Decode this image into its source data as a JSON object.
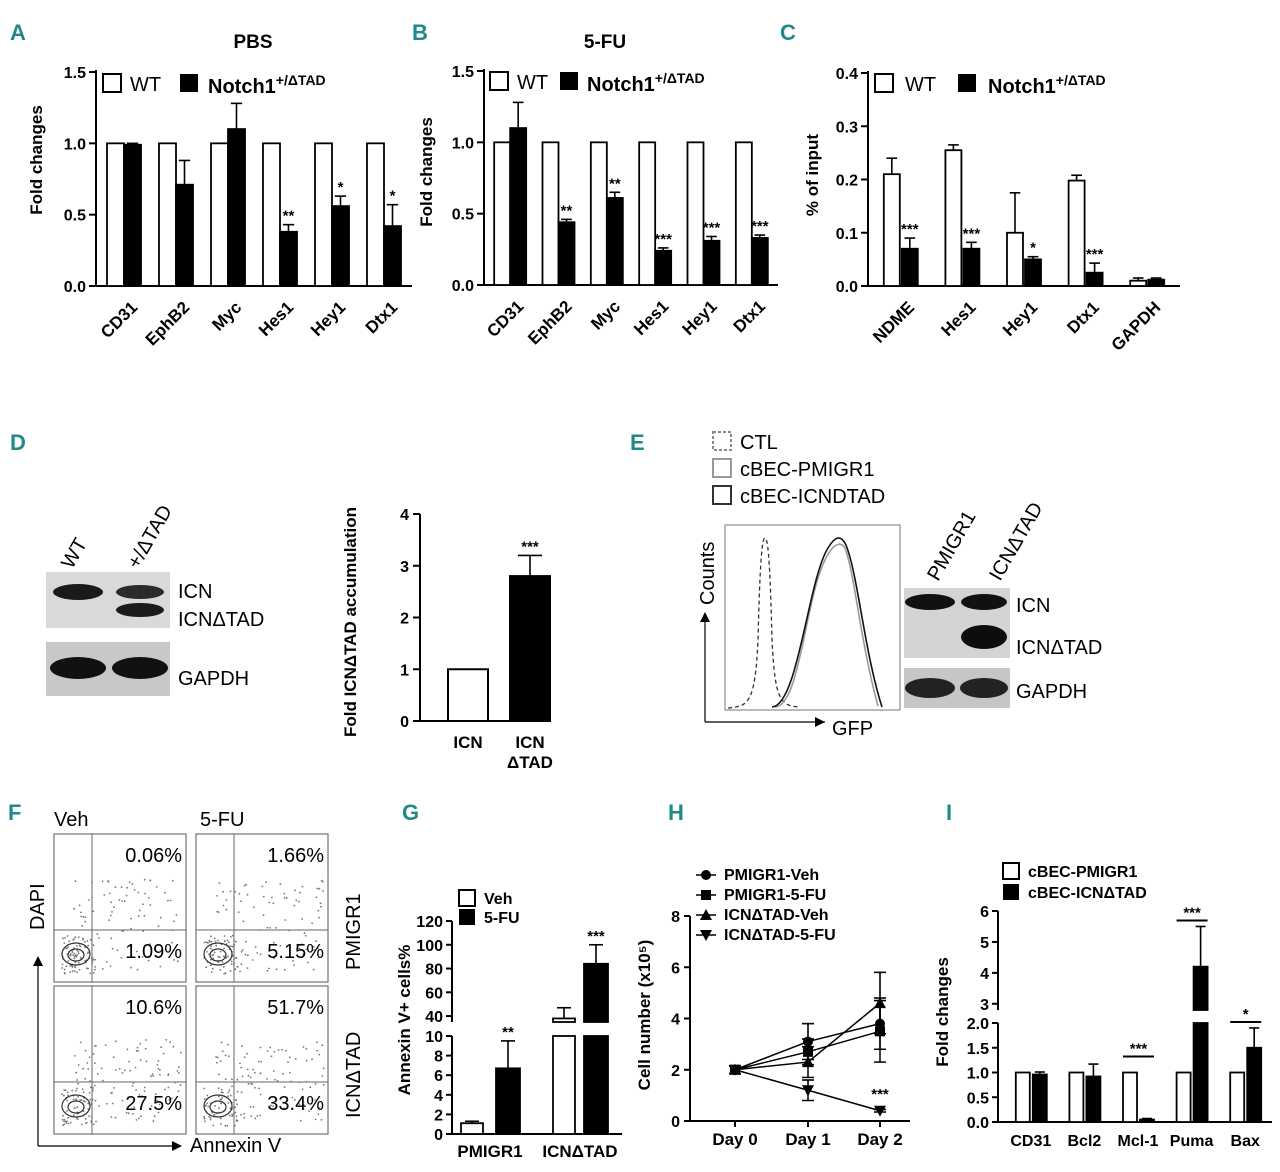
{
  "panel_labels": [
    "A",
    "B",
    "C",
    "D",
    "E",
    "F",
    "G",
    "H",
    "I"
  ],
  "colors": {
    "label": "#1f8a8a",
    "fill": "#000000",
    "open": "#ffffff"
  },
  "chart_data": [
    {
      "id": "A",
      "type": "bar",
      "title": "PBS",
      "ylabel": "Fold changes",
      "ylim": [
        0,
        1.5
      ],
      "yticks": [
        "0.0",
        "0.5",
        "1.0",
        "1.5"
      ],
      "categories": [
        "CD31",
        "EphB2",
        "Myc",
        "Hes1",
        "Hey1",
        "Dtx1"
      ],
      "legend": [
        "WT",
        "Notch1",
        "+/ΔTAD"
      ],
      "series": [
        {
          "name": "WT",
          "values": [
            1,
            1,
            1,
            1,
            1,
            1
          ],
          "errors": [
            0,
            0,
            0,
            0,
            0,
            0
          ]
        },
        {
          "name": "Notch1+/ΔTAD",
          "values": [
            0.99,
            0.71,
            1.1,
            0.38,
            0.56,
            0.42
          ],
          "errors": [
            0.01,
            0.17,
            0.18,
            0.05,
            0.07,
            0.15
          ]
        }
      ],
      "significance": [
        "",
        "",
        "",
        "**",
        "*",
        "*"
      ]
    },
    {
      "id": "B",
      "type": "bar",
      "title": "5-FU",
      "ylabel": "Fold changes",
      "ylim": [
        0,
        1.5
      ],
      "yticks": [
        "0.0",
        "0.5",
        "1.0",
        "1.5"
      ],
      "categories": [
        "CD31",
        "EphB2",
        "Myc",
        "Hes1",
        "Hey1",
        "Dtx1"
      ],
      "legend": [
        "WT",
        "Notch1",
        "+/ΔTAD"
      ],
      "series": [
        {
          "name": "WT",
          "values": [
            1,
            1,
            1,
            1,
            1,
            1
          ],
          "errors": [
            0,
            0,
            0,
            0,
            0,
            0
          ]
        },
        {
          "name": "Notch1+/ΔTAD",
          "values": [
            1.1,
            0.44,
            0.61,
            0.24,
            0.31,
            0.33
          ],
          "errors": [
            0.18,
            0.02,
            0.04,
            0.02,
            0.03,
            0.02
          ]
        }
      ],
      "significance": [
        "",
        "**",
        "**",
        "***",
        "***",
        "***"
      ]
    },
    {
      "id": "C",
      "type": "bar",
      "title": "",
      "ylabel": "% of input",
      "ylim": [
        0,
        0.4
      ],
      "yticks": [
        "0.0",
        "0.1",
        "0.2",
        "0.3",
        "0.4"
      ],
      "categories": [
        "NDME",
        "Hes1",
        "Hey1",
        "Dtx1",
        "GAPDH"
      ],
      "legend": [
        "WT",
        "Notch1",
        "+/ΔTAD"
      ],
      "series": [
        {
          "name": "WT",
          "values": [
            0.21,
            0.255,
            0.1,
            0.198,
            0.01
          ],
          "errors": [
            0.03,
            0.01,
            0.075,
            0.01,
            0.005
          ]
        },
        {
          "name": "Notch1+/ΔTAD",
          "values": [
            0.07,
            0.07,
            0.05,
            0.025,
            0.012
          ],
          "errors": [
            0.02,
            0.012,
            0.005,
            0.018,
            0.003
          ]
        }
      ],
      "significance": [
        "***",
        "***",
        "*",
        "***",
        ""
      ]
    },
    {
      "id": "D",
      "type": "bar",
      "ylabel": "Fold ICNΔTAD accumulation",
      "ylim": [
        0,
        4
      ],
      "yticks": [
        "0",
        "1",
        "2",
        "3",
        "4"
      ],
      "categories": [
        "ICN",
        "ICN ΔTAD"
      ],
      "category_lines": [
        [
          "ICN"
        ],
        [
          "ICN",
          "ΔTAD"
        ]
      ],
      "values": [
        1,
        2.8
      ],
      "errors": [
        0,
        0.4
      ],
      "fills": [
        "open",
        "fill"
      ],
      "significance": [
        "",
        "***"
      ]
    },
    {
      "id": "G",
      "type": "bar",
      "ylabel": "Annexin V+ cells%",
      "ylim_lower": [
        0,
        10
      ],
      "ylim_upper": [
        35,
        120
      ],
      "yticks_lower": [
        "0",
        "2",
        "4",
        "6",
        "8",
        "10"
      ],
      "yticks_upper": [
        "40",
        "60",
        "80",
        "100",
        "120"
      ],
      "categories": [
        "PMIGR1",
        "ICNΔTAD"
      ],
      "legend": [
        "Veh",
        "5-FU"
      ],
      "series": [
        {
          "name": "Veh",
          "values": [
            1.1,
            38
          ],
          "errors": [
            0.2,
            9
          ]
        },
        {
          "name": "5-FU",
          "values": [
            6.7,
            84
          ],
          "errors": [
            2.8,
            16
          ]
        }
      ],
      "significance": [
        "**",
        "***"
      ]
    },
    {
      "id": "H",
      "type": "line",
      "ylabel": "Cell number (x10⁵)",
      "ylim": [
        0,
        8
      ],
      "yticks": [
        "0",
        "2",
        "4",
        "6",
        "8"
      ],
      "categories": [
        "Day 0",
        "Day 1",
        "Day 2"
      ],
      "series": [
        {
          "name": "PMIGR1-Veh",
          "marker": "circle",
          "values": [
            2.0,
            3.1,
            3.8
          ],
          "errors": [
            0.15,
            0.7,
            1.0
          ]
        },
        {
          "name": "PMIGR1-5-FU",
          "marker": "square",
          "values": [
            2.0,
            2.7,
            3.5
          ],
          "errors": [
            0.15,
            0.5,
            1.2
          ]
        },
        {
          "name": "ICNΔTAD-Veh",
          "marker": "triangle",
          "values": [
            2.0,
            2.3,
            4.6
          ],
          "errors": [
            0.15,
            0.6,
            1.2
          ]
        },
        {
          "name": "ICNΔTAD-5-FU",
          "marker": "tri-down",
          "values": [
            2.0,
            1.2,
            0.4
          ],
          "errors": [
            0.15,
            0.4,
            0.05
          ]
        }
      ],
      "significance": [
        "",
        "",
        "***"
      ]
    },
    {
      "id": "I",
      "type": "bar",
      "ylabel": "Fold changes",
      "ylim_lower": [
        0,
        2.0
      ],
      "ylim_upper": [
        2.8,
        6
      ],
      "yticks_lower": [
        "0.0",
        "0.5",
        "1.0",
        "1.5",
        "2.0"
      ],
      "yticks_upper": [
        "3",
        "4",
        "5",
        "6"
      ],
      "categories": [
        "CD31",
        "Bcl2",
        "Mcl-1",
        "Puma",
        "Bax"
      ],
      "legend": [
        "cBEC-PMIGR1",
        "cBEC-ICNΔTAD"
      ],
      "series": [
        {
          "name": "cBEC-PMIGR1",
          "values": [
            1,
            1,
            1,
            1,
            1
          ],
          "errors": [
            0,
            0,
            0,
            0,
            0
          ]
        },
        {
          "name": "cBEC-ICNΔTAD",
          "values": [
            0.96,
            0.92,
            0.05,
            4.2,
            1.5
          ],
          "errors": [
            0.05,
            0.25,
            0.02,
            1.3,
            0.4
          ]
        }
      ],
      "significance": [
        "",
        "",
        "***",
        "***",
        "*"
      ]
    }
  ],
  "western_blot_D": {
    "lanes": [
      "WT",
      "+/ΔTAD"
    ],
    "bands": [
      "ICN",
      "ICNΔTAD",
      "GAPDH"
    ]
  },
  "panel_E": {
    "legend": [
      "CTL",
      "cBEC-PMIGR1",
      "cBEC-ICNDTAD"
    ],
    "xlabel": "GFP",
    "ylabel": "Counts",
    "lanes": [
      "PMIGR1",
      "ICNΔTAD"
    ],
    "bands": [
      "ICN",
      "ICNΔTAD",
      "GAPDH"
    ]
  },
  "panel_F": {
    "cols": [
      "Veh",
      "5-FU"
    ],
    "rows": [
      "PMIGR1",
      "ICNΔTAD"
    ],
    "xlabel": "Annexin V",
    "ylabel": "DAPI",
    "quadrants": [
      {
        "upper": "0.06%",
        "lower": "1.09%"
      },
      {
        "upper": "1.66%",
        "lower": "5.15%"
      },
      {
        "upper": "10.6%",
        "lower": "27.5%"
      },
      {
        "upper": "51.7%",
        "lower": "33.4%"
      }
    ]
  }
}
